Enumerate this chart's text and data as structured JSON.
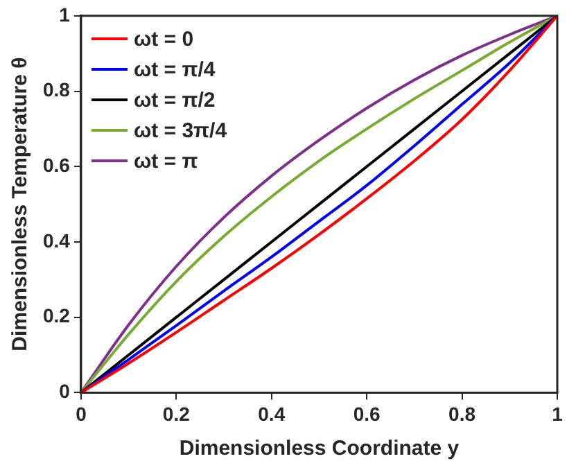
{
  "chart_data": {
    "type": "line",
    "xlabel": "Dimensionless Coordinate y",
    "ylabel": "Dimensionless Temperature θ",
    "x": [
      0,
      0.1,
      0.2,
      0.3,
      0.4,
      0.5,
      0.6,
      0.7,
      0.8,
      0.9,
      1
    ],
    "xlim": [
      0,
      1
    ],
    "xticks": [
      0,
      0.2,
      0.4,
      0.6,
      0.8,
      1
    ],
    "ylim": [
      0,
      1
    ],
    "yticks": [
      0,
      0.2,
      0.4,
      0.6,
      0.8,
      1
    ],
    "grid": false,
    "legend": "top left",
    "marker": "none",
    "line_style": "solid",
    "series": [
      {
        "name": "ωt = 0",
        "color": "#ff0000",
        "values": [
          0,
          0.078,
          0.16,
          0.245,
          0.33,
          0.42,
          0.515,
          0.615,
          0.725,
          0.855,
          1
        ]
      },
      {
        "name": "ωt = π/4",
        "color": "#0000ff",
        "values": [
          0,
          0.088,
          0.178,
          0.27,
          0.36,
          0.455,
          0.55,
          0.655,
          0.765,
          0.875,
          1
        ]
      },
      {
        "name": "ωt = π/2",
        "color": "#000000",
        "values": [
          0,
          0.1,
          0.2,
          0.3,
          0.4,
          0.5,
          0.6,
          0.7,
          0.8,
          0.9,
          1
        ]
      },
      {
        "name": "ωt = 3π/4",
        "color": "#77ac30",
        "values": [
          0,
          0.155,
          0.295,
          0.415,
          0.52,
          0.615,
          0.7,
          0.78,
          0.855,
          0.93,
          1
        ]
      },
      {
        "name": "ωt = π",
        "color": "#7e2f8e",
        "values": [
          0,
          0.18,
          0.335,
          0.465,
          0.575,
          0.67,
          0.755,
          0.83,
          0.895,
          0.95,
          1
        ]
      }
    ]
  }
}
